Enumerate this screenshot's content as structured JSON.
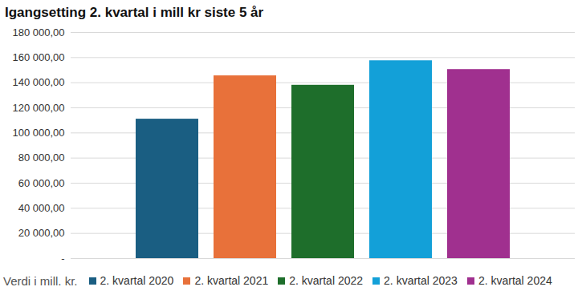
{
  "chart_data": {
    "type": "bar",
    "title": "Igangsetting 2. kvartal i mill kr siste 5 år",
    "xlabel": "Verdi i mill. kr.",
    "categories": [
      "2. kvartal 2020",
      "2. kvartal 2021",
      "2. kvartal 2022",
      "2. kvartal 2023",
      "2. kvartal 2024"
    ],
    "values": [
      111000,
      145500,
      138000,
      157500,
      150500
    ],
    "colors": [
      "#1a5e82",
      "#e8713a",
      "#1e6e2b",
      "#13a0d8",
      "#a0308f"
    ],
    "ylim": [
      0,
      180000
    ],
    "yticks": [
      {
        "value": 0,
        "label": "-"
      },
      {
        "value": 20000,
        "label": "20 000,00"
      },
      {
        "value": 40000,
        "label": "40 000,00"
      },
      {
        "value": 60000,
        "label": "60 000,00"
      },
      {
        "value": 80000,
        "label": "80 000,00"
      },
      {
        "value": 100000,
        "label": "100 000,00"
      },
      {
        "value": 120000,
        "label": "120 000,00"
      },
      {
        "value": 140000,
        "label": "140 000,00"
      },
      {
        "value": 160000,
        "label": "160 000,00"
      },
      {
        "value": 180000,
        "label": "180 000,00"
      }
    ],
    "grid": true,
    "legend": "bottom",
    "tick_labels": "y"
  }
}
